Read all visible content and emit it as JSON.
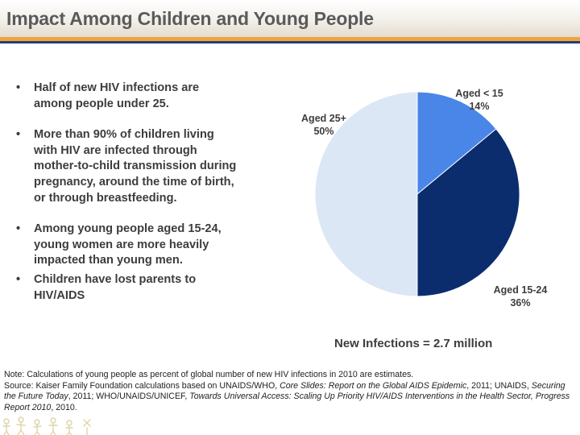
{
  "title": "Impact Among Children and Young People",
  "bullets": [
    "Half of new HIV infections are among people under 25.",
    "More than 90% of children living with HIV are infected through mother-to-child transmission during pregnancy, around the time of birth, or through breastfeeding.",
    "Among young people aged 15-24, young women are more heavily impacted than young men.",
    "Children have lost parents to HIV/AIDS"
  ],
  "bullet_symbol": "•",
  "chart_data": {
    "type": "pie",
    "title": "",
    "slices": [
      {
        "label": "Aged < 15",
        "value": 14,
        "value_text": "14%",
        "color": "#4a86e8"
      },
      {
        "label": "Aged 15-24",
        "value": 36,
        "value_text": "36%",
        "color": "#0b2d6e"
      },
      {
        "label": "Aged 25+",
        "value": 50,
        "value_text": "50%",
        "color": "#dce7f5"
      }
    ],
    "caption": "New Infections = 2.7 million"
  },
  "notes": {
    "note": "Note: Calculations of young people as percent of global number of new HIV infections in 2010 are estimates.",
    "source_lead": "Source: Kaiser Family Foundation calculations based on UNAIDS/WHO, ",
    "source_title1": "Core Slides: Report on the Global AIDS Epidemic",
    "source_mid1": ", 2011; UNAIDS, ",
    "source_title2": "Securing the Future Today",
    "source_mid2": ", 2011; WHO/UNAIDS/UNICEF, ",
    "source_title3": "Towards Universal Access: Scaling Up Priority HIV/AIDS Interventions in the Health Sector, Progress Report 2010",
    "source_end": ", 2010."
  },
  "colors": {
    "header_rule": "#f2a33a",
    "header_rule2": "#1f3f7a",
    "slice_border": "#ffffff"
  }
}
